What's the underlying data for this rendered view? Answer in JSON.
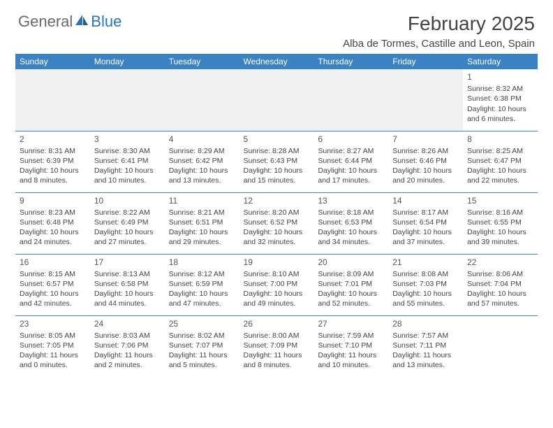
{
  "brand": {
    "word1": "General",
    "word2": "Blue"
  },
  "title": "February 2025",
  "location": "Alba de Tormes, Castille and Leon, Spain",
  "colors": {
    "header_bg": "#3b82c4",
    "header_fg": "#ffffff",
    "rule": "#3b82c4",
    "blank_bg": "#f1f1f1",
    "text": "#444444",
    "logo_gray": "#6a6a6a",
    "logo_blue": "#2a74b8"
  },
  "day_headers": [
    "Sunday",
    "Monday",
    "Tuesday",
    "Wednesday",
    "Thursday",
    "Friday",
    "Saturday"
  ],
  "weeks": [
    [
      null,
      null,
      null,
      null,
      null,
      null,
      {
        "n": "1",
        "sunrise": "8:32 AM",
        "sunset": "6:38 PM",
        "daylight": "10 hours and 6 minutes."
      }
    ],
    [
      {
        "n": "2",
        "sunrise": "8:31 AM",
        "sunset": "6:39 PM",
        "daylight": "10 hours and 8 minutes."
      },
      {
        "n": "3",
        "sunrise": "8:30 AM",
        "sunset": "6:41 PM",
        "daylight": "10 hours and 10 minutes."
      },
      {
        "n": "4",
        "sunrise": "8:29 AM",
        "sunset": "6:42 PM",
        "daylight": "10 hours and 13 minutes."
      },
      {
        "n": "5",
        "sunrise": "8:28 AM",
        "sunset": "6:43 PM",
        "daylight": "10 hours and 15 minutes."
      },
      {
        "n": "6",
        "sunrise": "8:27 AM",
        "sunset": "6:44 PM",
        "daylight": "10 hours and 17 minutes."
      },
      {
        "n": "7",
        "sunrise": "8:26 AM",
        "sunset": "6:46 PM",
        "daylight": "10 hours and 20 minutes."
      },
      {
        "n": "8",
        "sunrise": "8:25 AM",
        "sunset": "6:47 PM",
        "daylight": "10 hours and 22 minutes."
      }
    ],
    [
      {
        "n": "9",
        "sunrise": "8:23 AM",
        "sunset": "6:48 PM",
        "daylight": "10 hours and 24 minutes."
      },
      {
        "n": "10",
        "sunrise": "8:22 AM",
        "sunset": "6:49 PM",
        "daylight": "10 hours and 27 minutes."
      },
      {
        "n": "11",
        "sunrise": "8:21 AM",
        "sunset": "6:51 PM",
        "daylight": "10 hours and 29 minutes."
      },
      {
        "n": "12",
        "sunrise": "8:20 AM",
        "sunset": "6:52 PM",
        "daylight": "10 hours and 32 minutes."
      },
      {
        "n": "13",
        "sunrise": "8:18 AM",
        "sunset": "6:53 PM",
        "daylight": "10 hours and 34 minutes."
      },
      {
        "n": "14",
        "sunrise": "8:17 AM",
        "sunset": "6:54 PM",
        "daylight": "10 hours and 37 minutes."
      },
      {
        "n": "15",
        "sunrise": "8:16 AM",
        "sunset": "6:55 PM",
        "daylight": "10 hours and 39 minutes."
      }
    ],
    [
      {
        "n": "16",
        "sunrise": "8:15 AM",
        "sunset": "6:57 PM",
        "daylight": "10 hours and 42 minutes."
      },
      {
        "n": "17",
        "sunrise": "8:13 AM",
        "sunset": "6:58 PM",
        "daylight": "10 hours and 44 minutes."
      },
      {
        "n": "18",
        "sunrise": "8:12 AM",
        "sunset": "6:59 PM",
        "daylight": "10 hours and 47 minutes."
      },
      {
        "n": "19",
        "sunrise": "8:10 AM",
        "sunset": "7:00 PM",
        "daylight": "10 hours and 49 minutes."
      },
      {
        "n": "20",
        "sunrise": "8:09 AM",
        "sunset": "7:01 PM",
        "daylight": "10 hours and 52 minutes."
      },
      {
        "n": "21",
        "sunrise": "8:08 AM",
        "sunset": "7:03 PM",
        "daylight": "10 hours and 55 minutes."
      },
      {
        "n": "22",
        "sunrise": "8:06 AM",
        "sunset": "7:04 PM",
        "daylight": "10 hours and 57 minutes."
      }
    ],
    [
      {
        "n": "23",
        "sunrise": "8:05 AM",
        "sunset": "7:05 PM",
        "daylight": "11 hours and 0 minutes."
      },
      {
        "n": "24",
        "sunrise": "8:03 AM",
        "sunset": "7:06 PM",
        "daylight": "11 hours and 2 minutes."
      },
      {
        "n": "25",
        "sunrise": "8:02 AM",
        "sunset": "7:07 PM",
        "daylight": "11 hours and 5 minutes."
      },
      {
        "n": "26",
        "sunrise": "8:00 AM",
        "sunset": "7:09 PM",
        "daylight": "11 hours and 8 minutes."
      },
      {
        "n": "27",
        "sunrise": "7:59 AM",
        "sunset": "7:10 PM",
        "daylight": "11 hours and 10 minutes."
      },
      {
        "n": "28",
        "sunrise": "7:57 AM",
        "sunset": "7:11 PM",
        "daylight": "11 hours and 13 minutes."
      },
      null
    ]
  ],
  "labels": {
    "sunrise": "Sunrise:",
    "sunset": "Sunset:",
    "daylight": "Daylight:"
  }
}
